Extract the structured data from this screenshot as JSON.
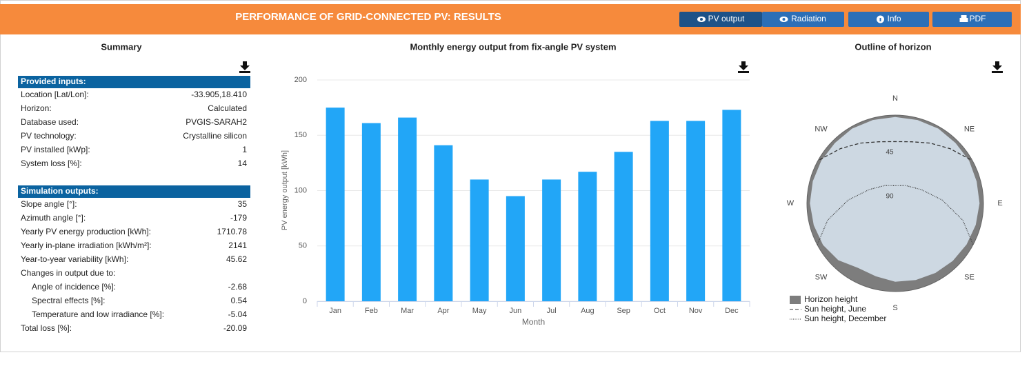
{
  "header": {
    "title": "PERFORMANCE OF GRID-CONNECTED PV: RESULTS",
    "buttons": [
      "PV output",
      "Radiation",
      "Info",
      "PDF"
    ]
  },
  "summary": {
    "title": "Summary",
    "inputs_title": "Provided inputs:",
    "inputs": [
      {
        "label": "Location [Lat/Lon]:",
        "value": "-33.905,18.410"
      },
      {
        "label": "Horizon:",
        "value": "Calculated"
      },
      {
        "label": "Database used:",
        "value": "PVGIS-SARAH2"
      },
      {
        "label": "PV technology:",
        "value": "Crystalline silicon"
      },
      {
        "label": "PV installed [kWp]:",
        "value": "1"
      },
      {
        "label": "System loss [%]:",
        "value": "14"
      }
    ],
    "outputs_title": "Simulation outputs:",
    "outputs": [
      {
        "label": "Slope angle [°]:",
        "value": "35"
      },
      {
        "label": "Azimuth angle [°]:",
        "value": "-179"
      },
      {
        "label": "Yearly PV energy production [kWh]:",
        "value": "1710.78"
      },
      {
        "label": "Yearly in-plane irradiation [kWh/m²]:",
        "value": "2141"
      },
      {
        "label": "Year-to-year variability [kWh]:",
        "value": "45.62"
      },
      {
        "label": "Changes in output due to:",
        "items": [
          {
            "label": "Angle of incidence [%]:",
            "value": "-2.68"
          },
          {
            "label": "Spectral effects [%]:",
            "value": "0.54"
          },
          {
            "label": "Temperature and low irradiance [%]:",
            "value": "-5.04"
          }
        ]
      },
      {
        "label": "Total loss [%]:",
        "value": "-20.09"
      }
    ]
  },
  "chart_data": [
    {
      "type": "bar",
      "title": "Monthly energy output from fix-angle PV system",
      "x_label": "Month",
      "y_label": "PV energy output [kWh]",
      "categories": [
        "Jan",
        "Feb",
        "Mar",
        "Apr",
        "May",
        "Jun",
        "Jul",
        "Aug",
        "Sep",
        "Oct",
        "Nov",
        "Dec"
      ],
      "values": [
        175,
        161,
        166,
        141,
        110,
        95,
        110,
        117,
        135,
        163,
        163,
        173
      ],
      "color": "#22a6f7",
      "ylim": [
        0,
        200
      ],
      "yticks": [
        0,
        50,
        100,
        150,
        200
      ],
      "grid": true
    },
    {
      "type": "polar",
      "title": "Outline of horizon",
      "directions": [
        "N",
        "NE",
        "E",
        "SE",
        "S",
        "SW",
        "W",
        "NW"
      ],
      "rlim": [
        90,
        0
      ],
      "rticks": [
        45,
        90
      ],
      "series": [
        {
          "name": "Horizon height",
          "style": "area",
          "color": "#7d7d7d",
          "x": [
            0,
            15,
            30,
            45,
            60,
            75,
            90,
            105,
            120,
            135,
            150,
            165,
            180,
            195,
            210,
            225,
            240,
            255,
            270,
            285,
            300,
            315,
            330,
            345,
            360
          ],
          "values": [
            2,
            2,
            2,
            3,
            3,
            4,
            4,
            5,
            6,
            7,
            8,
            9,
            10,
            13,
            14,
            8,
            5,
            4,
            3,
            3,
            3,
            3,
            2,
            2,
            2
          ]
        },
        {
          "name": "Sun height, June",
          "style": "dashed",
          "color": "#333333",
          "x": [
            -60,
            -45,
            -30,
            -15,
            0,
            15,
            30,
            45,
            60
          ],
          "values": [
            1,
            11,
            19,
            25,
            27,
            25,
            19,
            11,
            1
          ]
        },
        {
          "name": "Sun height, December",
          "style": "dotted",
          "color": "#333333",
          "x": [
            -118,
            -104,
            -86,
            -62,
            -30,
            0,
            30,
            62,
            86,
            104,
            118
          ],
          "values": [
            0,
            19,
            42,
            60,
            69,
            72,
            69,
            60,
            42,
            19,
            0
          ]
        }
      ]
    }
  ]
}
